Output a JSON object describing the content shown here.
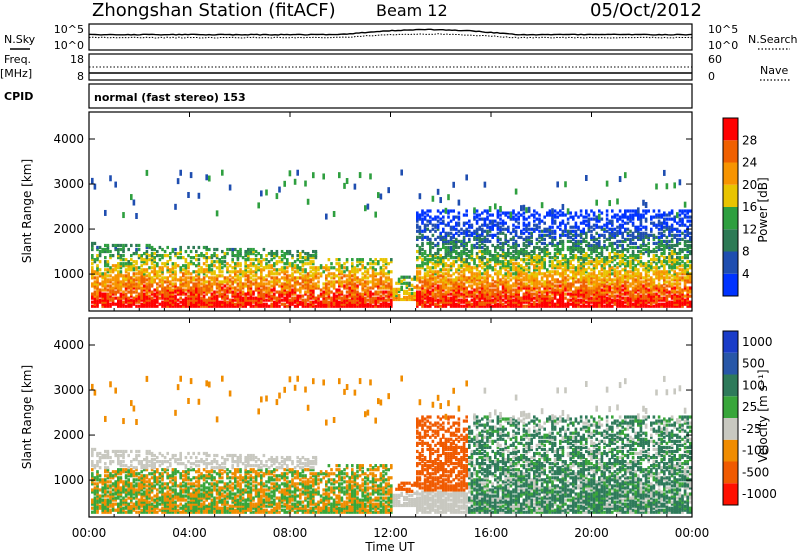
{
  "header": {
    "station": "Zhongshan Station (fitACF)",
    "beam": "Beam 12",
    "date": "05/Oct/2012"
  },
  "params": {
    "nsky_label": "N.Sky",
    "nsky_ticks": [
      "10^5",
      "10^0"
    ],
    "nsearch_label": "N.Search",
    "nsearch_ticks": [
      "10^5",
      "10^0"
    ],
    "freq_label": "Freq.",
    "freq_unit": "[MHz]",
    "freq_ticks": [
      "18",
      "8"
    ],
    "nave_label": "Nave",
    "nave_ticks": [
      "60",
      "0"
    ],
    "cpid_label": "CPID",
    "cpid_text": "normal (fast stereo) 153"
  },
  "axes": {
    "x_label": "Time UT",
    "x_ticks": [
      "00:00",
      "04:00",
      "08:00",
      "12:00",
      "16:00",
      "20:00",
      "00:00"
    ],
    "y_label": "Slant Range [km]",
    "y_ticks": [
      "1000",
      "2000",
      "3000",
      "4000"
    ]
  },
  "colors": {
    "power": [
      "#0033ff",
      "#1f4eb0",
      "#2d7a55",
      "#2e9f3f",
      "#e8c400",
      "#f79400",
      "#f06000",
      "#ff0000"
    ],
    "velocity": [
      "#1a3cc8",
      "#2857a8",
      "#2e7a5a",
      "#38a63a",
      "#c8c8c0",
      "#f08c00",
      "#f05a00",
      "#ff1000"
    ]
  },
  "chart_data": [
    {
      "type": "heatmap",
      "name": "power",
      "colorbar_label": "Power [dB]",
      "colorbar_ticks": [
        "4",
        "8",
        "12",
        "16",
        "20",
        "24",
        "28"
      ],
      "xlim": [
        0,
        24
      ],
      "ylim": [
        180,
        4600
      ],
      "x": [
        "00:00",
        "04:00",
        "08:00",
        "12:00",
        "16:00",
        "20:00",
        "00:00"
      ],
      "y_ticks": [
        1000,
        2000,
        3000,
        4000
      ]
    },
    {
      "type": "heatmap",
      "name": "velocity",
      "colorbar_label": "Velocity [m s⁻¹]",
      "colorbar_ticks": [
        "1000",
        "500",
        "100",
        "25",
        "-25",
        "-100",
        "-500",
        "-1000"
      ],
      "xlim": [
        0,
        24
      ],
      "ylim": [
        180,
        4600
      ],
      "x": [
        "00:00",
        "04:00",
        "08:00",
        "12:00",
        "16:00",
        "20:00",
        "00:00"
      ],
      "y_ticks": [
        1000,
        2000,
        3000,
        4000
      ]
    }
  ]
}
